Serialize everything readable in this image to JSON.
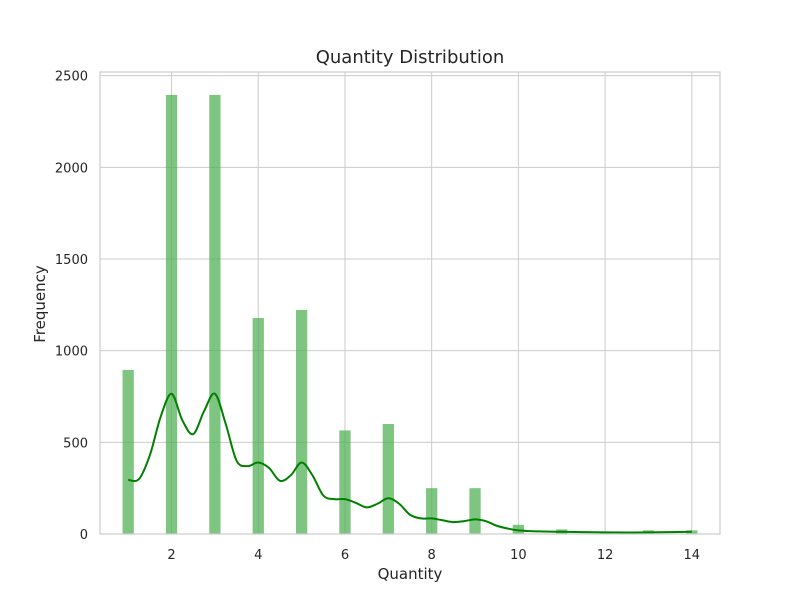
{
  "chart_data": {
    "type": "bar",
    "subtype": "histogram-with-kde",
    "title": "Quantity Distribution",
    "xlabel": "Quantity",
    "ylabel": "Frequency",
    "xlim": [
      0.35,
      14.65
    ],
    "ylim": [
      0,
      2520
    ],
    "x_ticks": [
      2,
      4,
      6,
      8,
      10,
      12,
      14
    ],
    "y_ticks": [
      0,
      500,
      1000,
      1500,
      2000,
      2500
    ],
    "grid": true,
    "legend": "none",
    "colors": {
      "bars": "#4caf50",
      "kde_line": "#008000",
      "grid": "#cccccc",
      "axes": "#cccccc"
    },
    "histogram": {
      "bin_width": 0.26,
      "bins": [
        {
          "x": 1,
          "value": 895
        },
        {
          "x": 2,
          "value": 2395
        },
        {
          "x": 3,
          "value": 2395
        },
        {
          "x": 4,
          "value": 1178
        },
        {
          "x": 5,
          "value": 1222
        },
        {
          "x": 6,
          "value": 565
        },
        {
          "x": 7,
          "value": 600
        },
        {
          "x": 8,
          "value": 250
        },
        {
          "x": 9,
          "value": 250
        },
        {
          "x": 10,
          "value": 50
        },
        {
          "x": 11,
          "value": 25
        },
        {
          "x": 12,
          "value": 12
        },
        {
          "x": 13,
          "value": 20
        },
        {
          "x": 14,
          "value": 20
        }
      ]
    },
    "kde": {
      "x": [
        1.0,
        1.25,
        1.5,
        1.75,
        2.0,
        2.25,
        2.5,
        2.75,
        3.0,
        3.25,
        3.5,
        3.75,
        4.0,
        4.25,
        4.5,
        4.75,
        5.0,
        5.25,
        5.5,
        5.75,
        6.0,
        6.25,
        6.5,
        6.75,
        7.0,
        7.25,
        7.5,
        7.75,
        8.0,
        8.25,
        8.5,
        8.75,
        9.0,
        9.25,
        9.5,
        9.75,
        10.0,
        10.5,
        11.0,
        11.5,
        12.0,
        12.5,
        13.0,
        13.5,
        14.0
      ],
      "y": [
        295,
        300,
        430,
        640,
        765,
        620,
        545,
        670,
        765,
        600,
        400,
        370,
        390,
        360,
        290,
        320,
        390,
        320,
        210,
        190,
        190,
        170,
        145,
        165,
        195,
        165,
        105,
        85,
        85,
        75,
        65,
        70,
        80,
        70,
        45,
        30,
        20,
        14,
        12,
        10,
        9,
        8,
        9,
        10,
        12
      ]
    }
  }
}
